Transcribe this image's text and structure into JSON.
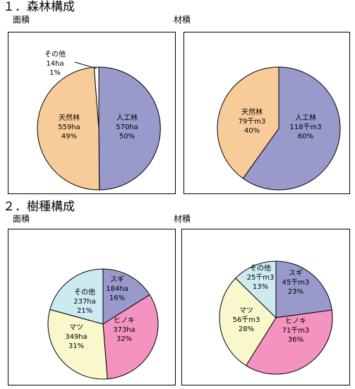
{
  "sections": [
    {
      "title": "１．森林構成",
      "labels": {
        "area": "面積",
        "volume": "材積"
      }
    },
    {
      "title": "２．樹種構成",
      "labels": {
        "area": "面積",
        "volume": "材積"
      }
    }
  ],
  "colors": {
    "planted": "#9999cc",
    "natural": "#f8cc98",
    "other_forest": "#ffffff",
    "sugi": "#9999cc",
    "hinoki": "#f492c0",
    "matsu": "#f8f8cc",
    "other_species": "#cceaf0"
  },
  "chart_data": [
    {
      "type": "pie",
      "section": "forest",
      "measure": "area",
      "slices": [
        {
          "name": "人工林",
          "value": "570ha",
          "percent": "50%",
          "share": 570,
          "color": "#9999cc"
        },
        {
          "name": "天然林",
          "value": "559ha",
          "percent": "49%",
          "share": 559,
          "color": "#f8cc98"
        },
        {
          "name": "その他",
          "value": "14ha",
          "percent": "1%",
          "share": 14,
          "color": "#ffffff"
        }
      ]
    },
    {
      "type": "pie",
      "section": "forest",
      "measure": "volume",
      "slices": [
        {
          "name": "人工林",
          "value": "118千m3",
          "percent": "60%",
          "share": 118,
          "color": "#9999cc"
        },
        {
          "name": "天然林",
          "value": "79千m3",
          "percent": "40%",
          "share": 79,
          "color": "#f8cc98"
        }
      ]
    },
    {
      "type": "pie",
      "section": "species",
      "measure": "area",
      "slices": [
        {
          "name": "スギ",
          "value": "184ha",
          "percent": "16%",
          "share": 184,
          "color": "#9999cc"
        },
        {
          "name": "ヒノキ",
          "value": "373ha",
          "percent": "32%",
          "share": 373,
          "color": "#f492c0"
        },
        {
          "name": "マツ",
          "value": "349ha",
          "percent": "31%",
          "share": 349,
          "color": "#f8f8cc"
        },
        {
          "name": "その他",
          "value": "237ha",
          "percent": "21%",
          "share": 237,
          "color": "#cceaf0"
        }
      ]
    },
    {
      "type": "pie",
      "section": "species",
      "measure": "volume",
      "slices": [
        {
          "name": "スギ",
          "value": "45千m3",
          "percent": "23%",
          "share": 45,
          "color": "#9999cc"
        },
        {
          "name": "ヒノキ",
          "value": "71千m3",
          "percent": "36%",
          "share": 71,
          "color": "#f492c0"
        },
        {
          "name": "マツ",
          "value": "56千m3",
          "percent": "28%",
          "share": 56,
          "color": "#f8f8cc"
        },
        {
          "name": "その他",
          "value": "25千m3",
          "percent": "13%",
          "share": 25,
          "color": "#cceaf0"
        }
      ]
    }
  ]
}
